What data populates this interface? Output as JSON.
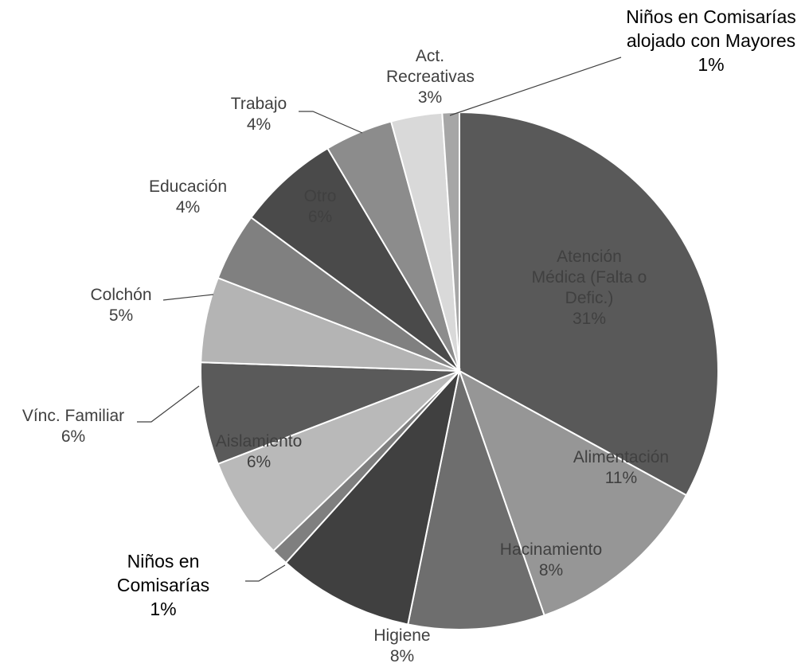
{
  "chart_data": {
    "type": "pie",
    "categories": [
      "Atención Médica (Falta o Defic.)",
      "Alimentación",
      "Hacinamiento",
      "Higiene",
      "Niños en Comisarías",
      "Aislamiento",
      "Vínc. Familiar",
      "Colchón",
      "Educación",
      "Otro",
      "Trabajo",
      "Act. Recreativas",
      "Niños en Comisarías alojado con Mayores"
    ],
    "values": [
      31,
      11,
      8,
      8,
      1,
      6,
      6,
      5,
      4,
      6,
      4,
      3,
      1
    ],
    "value_labels": [
      "31%",
      "11%",
      "8%",
      "8%",
      "1%",
      "6%",
      "6%",
      "5%",
      "4%",
      "6%",
      "4%",
      "3%",
      "1%"
    ],
    "colors": [
      "#595959",
      "#969696",
      "#6e6e6e",
      "#404040",
      "#7f7f7f",
      "#b9b9b9",
      "#5a5a5a",
      "#b4b4b4",
      "#808080",
      "#4a4a4a",
      "#8c8c8c",
      "#d9d9d9",
      "#a6a6a6"
    ]
  }
}
